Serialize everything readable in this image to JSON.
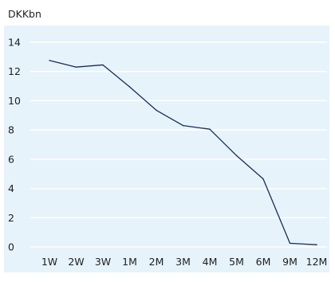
{
  "colors": {
    "plot_background": "#e6f3fa",
    "gridline": "#ffffff",
    "line": "#1a2b5c",
    "text": "#1f1f1f"
  },
  "chart_data": {
    "type": "line",
    "title": "",
    "xlabel": "",
    "ylabel": "",
    "unit_label": "DKKbn",
    "categories": [
      "1W",
      "2W",
      "3W",
      "1M",
      "2M",
      "3M",
      "4M",
      "5M",
      "6M",
      "9M",
      "12M"
    ],
    "series": [
      {
        "values": [
          12.75,
          12.3,
          12.45,
          10.95,
          9.35,
          8.3,
          8.05,
          6.25,
          4.65,
          0.25,
          0.15
        ]
      }
    ],
    "ylim": [
      0,
      14
    ],
    "y_ticks": [
      0,
      2,
      4,
      6,
      8,
      10,
      12,
      14
    ],
    "grid": true,
    "legend": "none"
  }
}
